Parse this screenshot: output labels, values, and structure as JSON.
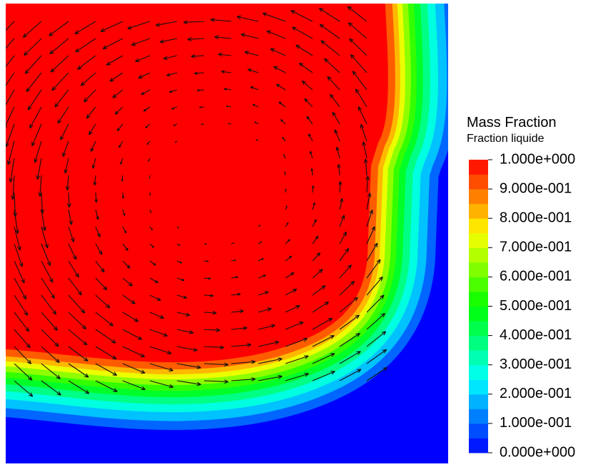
{
  "legend": {
    "title": "Mass Fraction",
    "subtitle": "Fraction liquide",
    "ticks": [
      {
        "value": 1,
        "label": "1.000e+000"
      },
      {
        "value": 0.9,
        "label": "9.000e-001"
      },
      {
        "value": 0.8,
        "label": "8.000e-001"
      },
      {
        "value": 0.7,
        "label": "7.000e-001"
      },
      {
        "value": 0.6,
        "label": "6.000e-001"
      },
      {
        "value": 0.5,
        "label": "5.000e-001"
      },
      {
        "value": 0.4,
        "label": "4.000e-001"
      },
      {
        "value": 0.3,
        "label": "3.000e-001"
      },
      {
        "value": 0.2,
        "label": "2.000e-001"
      },
      {
        "value": 0.1,
        "label": "1.000e-001"
      },
      {
        "value": 0,
        "label": "0.000e+000"
      }
    ]
  }
}
